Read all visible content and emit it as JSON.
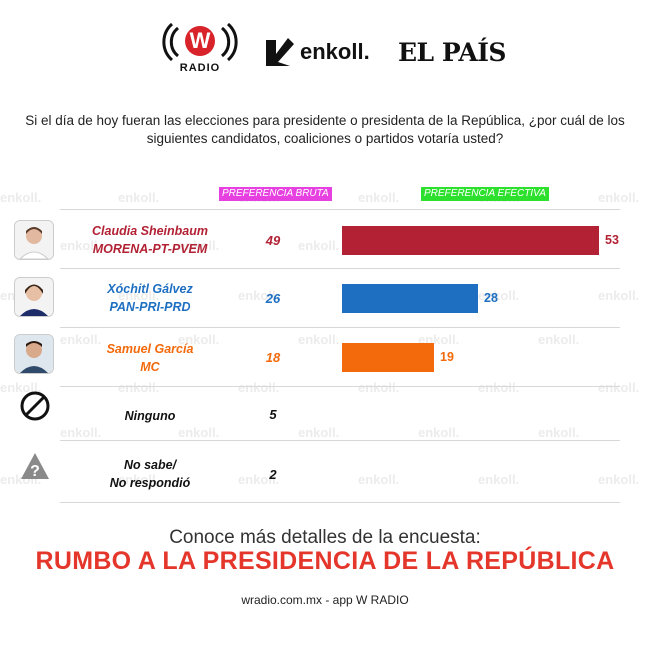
{
  "logos": {
    "wradio_letter": "W",
    "wradio_text": "RADIO",
    "enkoll_text": "enkoll.",
    "elpais_text": "EL PAÍS"
  },
  "question": "Si el día de hoy fueran las elecciones para presidente o presidenta de la República, ¿por cuál de los siguientes candidatos, coaliciones o partidos votaría usted?",
  "headers": {
    "bruta": "PREFERENCIA BRUTA",
    "efectiva": "PREFERENCIA EFECTIVA"
  },
  "watermark_text": "enkoll.",
  "chart_data": {
    "type": "bar",
    "orientation": "horizontal",
    "categories": [
      "Claudia Sheinbaum MORENA-PT-PVEM",
      "Xóchitl Gálvez PAN-PRI-PRD",
      "Samuel García MC",
      "Ninguno",
      "No sabe/ No respondió"
    ],
    "series": [
      {
        "name": "PREFERENCIA BRUTA",
        "values": [
          49,
          26,
          18,
          5,
          2
        ]
      },
      {
        "name": "PREFERENCIA EFECTIVA",
        "values": [
          53,
          28,
          19,
          null,
          null
        ]
      }
    ],
    "xlim": [
      0,
      53
    ]
  },
  "candidates": [
    {
      "name": "Claudia Sheinbaum",
      "party": "MORENA-PT-PVEM",
      "bruta": "49",
      "efectiva": "53",
      "efectiva_value": 53,
      "color": "#b22234",
      "icon": "candidate-photo"
    },
    {
      "name": "Xóchitl Gálvez",
      "party": "PAN-PRI-PRD",
      "bruta": "26",
      "efectiva": "28",
      "efectiva_value": 28,
      "color": "#1e6fc2",
      "icon": "candidate-photo"
    },
    {
      "name": "Samuel García",
      "party": "MC",
      "bruta": "18",
      "efectiva": "19",
      "efectiva_value": 19,
      "color": "#f26a0c",
      "icon": "candidate-photo"
    }
  ],
  "others": [
    {
      "label": "Ninguno",
      "bruta": "5",
      "icon": "prohibited-icon"
    },
    {
      "label": "No sabe/\nNo respondió",
      "bruta": "2",
      "icon": "question-warning-icon"
    }
  ],
  "cta": {
    "line1": "Conoce más detalles de la encuesta:",
    "title": "RUMBO A LA PRESIDENCIA DE LA REPÚBLICA",
    "site": "wradio.com.mx - app W RADIO"
  }
}
